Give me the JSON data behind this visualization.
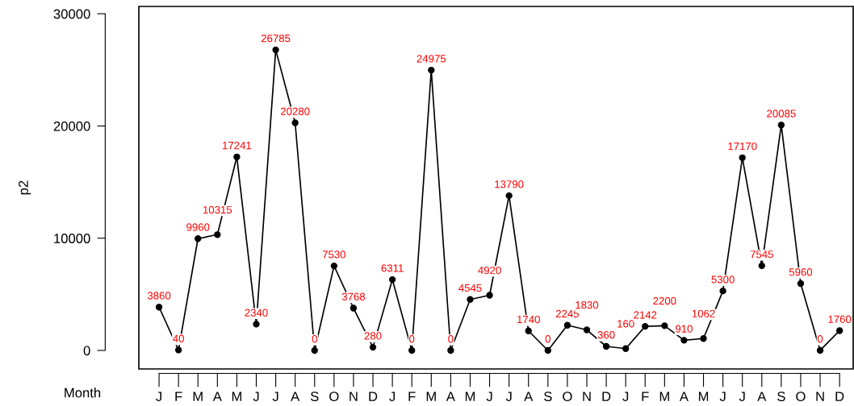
{
  "chart_data": {
    "type": "line",
    "xlabel": "Month",
    "ylabel": "p2",
    "categories": [
      "J",
      "F",
      "M",
      "A",
      "M",
      "J",
      "J",
      "A",
      "S",
      "O",
      "N",
      "D",
      "J",
      "F",
      "M",
      "A",
      "M",
      "J",
      "J",
      "A",
      "S",
      "O",
      "N",
      "D",
      "J",
      "F",
      "M",
      "A",
      "M",
      "J",
      "J",
      "A",
      "S",
      "O",
      "N",
      "D"
    ],
    "series": [
      {
        "color": "#000000",
        "values": [
          3860,
          40,
          9960,
          10315,
          17241,
          2340,
          26785,
          20280,
          0,
          7530,
          3768,
          280,
          6311,
          0,
          24975,
          0,
          4545,
          4920,
          13790,
          1740,
          0,
          2245,
          1830,
          360,
          160,
          2142,
          2200,
          910,
          1062,
          5300,
          17170,
          7545,
          20085,
          5960,
          0,
          1760
        ]
      }
    ],
    "data_labels": true,
    "marker": "circle",
    "line_style": "solid",
    "ylim": [
      -1650,
      30650
    ],
    "yticks": [
      0,
      10000,
      20000,
      30000
    ],
    "grid": false,
    "legend": false
  }
}
